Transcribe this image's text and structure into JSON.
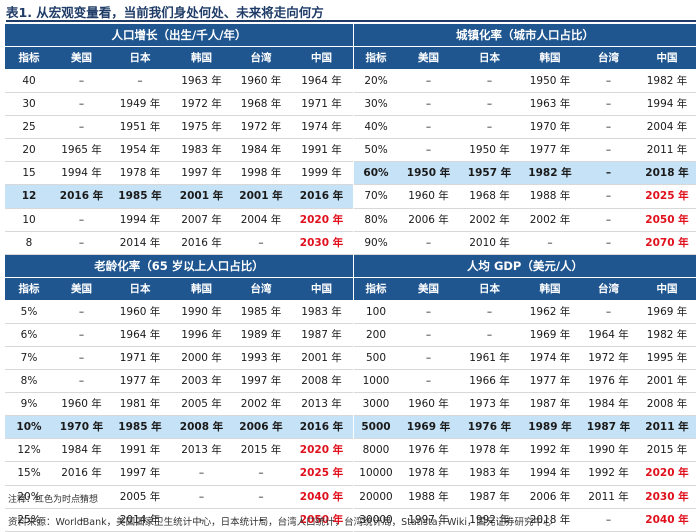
{
  "title": "表1. 从宏观变量看，当前我们身处何处、未来将走向何方",
  "col_headers": [
    "指标",
    "美国",
    "日本",
    "韩国",
    "台湾",
    "中国"
  ],
  "panels": {
    "birth": {
      "title": "人口增长（出生/千人/年）",
      "highlight_row": 5,
      "rows": [
        [
          "40",
          "–",
          "–",
          "1963 年",
          "1960 年",
          "1964 年"
        ],
        [
          "30",
          "–",
          "1949 年",
          "1972 年",
          "1968 年",
          "1971 年"
        ],
        [
          "25",
          "–",
          "1951 年",
          "1975 年",
          "1972 年",
          "1974 年"
        ],
        [
          "20",
          "1965 年",
          "1954 年",
          "1983 年",
          "1984 年",
          "1991 年"
        ],
        [
          "15",
          "1994 年",
          "1978 年",
          "1997 年",
          "1998 年",
          "1999 年"
        ],
        [
          "12",
          "2016 年",
          "1985 年",
          "2001 年",
          "2001 年",
          "2016 年"
        ],
        [
          "10",
          "–",
          "1994 年",
          "2007 年",
          "2004 年",
          "2020 年"
        ],
        [
          "8",
          "–",
          "2014 年",
          "2016 年",
          "–",
          "2030 年"
        ]
      ]
    },
    "urban": {
      "title": "城镇化率（城市人口占比）",
      "highlight_row": 4,
      "rows": [
        [
          "20%",
          "–",
          "–",
          "1950 年",
          "–",
          "1982 年"
        ],
        [
          "30%",
          "–",
          "–",
          "1963 年",
          "–",
          "1994 年"
        ],
        [
          "40%",
          "–",
          "–",
          "1970 年",
          "–",
          "2004 年"
        ],
        [
          "50%",
          "–",
          "1950 年",
          "1977 年",
          "–",
          "2011 年"
        ],
        [
          "60%",
          "1950 年",
          "1957 年",
          "1982 年",
          "–",
          "2018 年"
        ],
        [
          "70%",
          "1960 年",
          "1968 年",
          "1988 年",
          "–",
          "2025 年"
        ],
        [
          "80%",
          "2006 年",
          "2002 年",
          "2002 年",
          "–",
          "2050 年"
        ],
        [
          "90%",
          "–",
          "2010 年",
          "–",
          "–",
          "2070 年"
        ]
      ]
    },
    "aging": {
      "title": "老龄化率（65 岁以上人口占比）",
      "highlight_row": 5,
      "rows": [
        [
          "5%",
          "–",
          "1960 年",
          "1990 年",
          "1985 年",
          "1983 年"
        ],
        [
          "6%",
          "–",
          "1964 年",
          "1996 年",
          "1989 年",
          "1987 年"
        ],
        [
          "7%",
          "–",
          "1971 年",
          "2000 年",
          "1993 年",
          "2001 年"
        ],
        [
          "8%",
          "–",
          "1977 年",
          "2003 年",
          "1997 年",
          "2008 年"
        ],
        [
          "9%",
          "1960 年",
          "1981 年",
          "2005 年",
          "2002 年",
          "2013 年"
        ],
        [
          "10%",
          "1970 年",
          "1985 年",
          "2008 年",
          "2006 年",
          "2016 年"
        ],
        [
          "12%",
          "1984 年",
          "1991 年",
          "2013 年",
          "2015 年",
          "2020 年"
        ],
        [
          "15%",
          "2016 年",
          "1997 年",
          "–",
          "–",
          "2025 年"
        ],
        [
          "20%",
          "–",
          "2005 年",
          "–",
          "–",
          "2040 年"
        ],
        [
          "25%",
          "–",
          "2014 年",
          "–",
          "–",
          "2050 年"
        ]
      ]
    },
    "gdp": {
      "title": "人均 GDP（美元/人）",
      "highlight_row": 5,
      "rows": [
        [
          "100",
          "–",
          "–",
          "1962 年",
          "–",
          "1969 年"
        ],
        [
          "200",
          "–",
          "–",
          "1969 年",
          "1964 年",
          "1982 年"
        ],
        [
          "500",
          "–",
          "1961 年",
          "1974 年",
          "1972 年",
          "1995 年"
        ],
        [
          "1000",
          "–",
          "1966 年",
          "1977 年",
          "1976 年",
          "2001 年"
        ],
        [
          "3000",
          "1960 年",
          "1973 年",
          "1987 年",
          "1984 年",
          "2008 年"
        ],
        [
          "5000",
          "1969 年",
          "1976 年",
          "1989 年",
          "1987 年",
          "2011 年"
        ],
        [
          "8000",
          "1976 年",
          "1978 年",
          "1992 年",
          "1990 年",
          "2015 年"
        ],
        [
          "10000",
          "1978 年",
          "1983 年",
          "1994 年",
          "1992 年",
          "2020 年"
        ],
        [
          "20000",
          "1988 年",
          "1987 年",
          "2006 年",
          "2011 年",
          "2030 年"
        ],
        [
          "30000",
          "1997 年",
          "1992 年",
          "2018 年",
          "–",
          "2040 年"
        ]
      ]
    }
  },
  "red_cells": {
    "birth": [
      [
        6,
        5
      ],
      [
        7,
        5
      ]
    ],
    "urban": [
      [
        5,
        5
      ],
      [
        6,
        5
      ],
      [
        7,
        5
      ]
    ],
    "aging": [
      [
        6,
        5
      ],
      [
        7,
        5
      ],
      [
        8,
        5
      ],
      [
        9,
        5
      ]
    ],
    "gdp": [
      [
        7,
        5
      ],
      [
        8,
        5
      ],
      [
        9,
        5
      ]
    ]
  },
  "note": "注释：红色为时点猜想",
  "source": "资料来源：WorldBank，美国国家卫生统计中心，日本统计局，台湾人口统计，台湾统计局，Statista，Wiki，国元证券研究中心",
  "colors": {
    "header_bg": "#1f5690",
    "highlight_bg": "#c6e2f6",
    "forecast": "#e0101c",
    "title": "#1f3c68"
  }
}
